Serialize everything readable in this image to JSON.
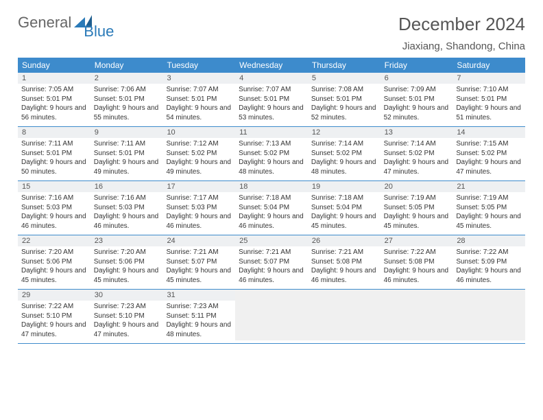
{
  "brand": {
    "part1": "General",
    "part2": "Blue"
  },
  "title": "December 2024",
  "location": "Jiaxiang, Shandong, China",
  "colors": {
    "header_bg": "#3d8bcc",
    "header_fg": "#ffffff",
    "datenum_bg": "#eef0f2",
    "brand_accent": "#2a7ab8",
    "text": "#333333",
    "rule": "#3d8bcc"
  },
  "day_headers": [
    "Sunday",
    "Monday",
    "Tuesday",
    "Wednesday",
    "Thursday",
    "Friday",
    "Saturday"
  ],
  "weeks": [
    [
      {
        "n": "1",
        "sr": "Sunrise: 7:05 AM",
        "ss": "Sunset: 5:01 PM",
        "dl": "Daylight: 9 hours and 56 minutes."
      },
      {
        "n": "2",
        "sr": "Sunrise: 7:06 AM",
        "ss": "Sunset: 5:01 PM",
        "dl": "Daylight: 9 hours and 55 minutes."
      },
      {
        "n": "3",
        "sr": "Sunrise: 7:07 AM",
        "ss": "Sunset: 5:01 PM",
        "dl": "Daylight: 9 hours and 54 minutes."
      },
      {
        "n": "4",
        "sr": "Sunrise: 7:07 AM",
        "ss": "Sunset: 5:01 PM",
        "dl": "Daylight: 9 hours and 53 minutes."
      },
      {
        "n": "5",
        "sr": "Sunrise: 7:08 AM",
        "ss": "Sunset: 5:01 PM",
        "dl": "Daylight: 9 hours and 52 minutes."
      },
      {
        "n": "6",
        "sr": "Sunrise: 7:09 AM",
        "ss": "Sunset: 5:01 PM",
        "dl": "Daylight: 9 hours and 52 minutes."
      },
      {
        "n": "7",
        "sr": "Sunrise: 7:10 AM",
        "ss": "Sunset: 5:01 PM",
        "dl": "Daylight: 9 hours and 51 minutes."
      }
    ],
    [
      {
        "n": "8",
        "sr": "Sunrise: 7:11 AM",
        "ss": "Sunset: 5:01 PM",
        "dl": "Daylight: 9 hours and 50 minutes."
      },
      {
        "n": "9",
        "sr": "Sunrise: 7:11 AM",
        "ss": "Sunset: 5:01 PM",
        "dl": "Daylight: 9 hours and 49 minutes."
      },
      {
        "n": "10",
        "sr": "Sunrise: 7:12 AM",
        "ss": "Sunset: 5:02 PM",
        "dl": "Daylight: 9 hours and 49 minutes."
      },
      {
        "n": "11",
        "sr": "Sunrise: 7:13 AM",
        "ss": "Sunset: 5:02 PM",
        "dl": "Daylight: 9 hours and 48 minutes."
      },
      {
        "n": "12",
        "sr": "Sunrise: 7:14 AM",
        "ss": "Sunset: 5:02 PM",
        "dl": "Daylight: 9 hours and 48 minutes."
      },
      {
        "n": "13",
        "sr": "Sunrise: 7:14 AM",
        "ss": "Sunset: 5:02 PM",
        "dl": "Daylight: 9 hours and 47 minutes."
      },
      {
        "n": "14",
        "sr": "Sunrise: 7:15 AM",
        "ss": "Sunset: 5:02 PM",
        "dl": "Daylight: 9 hours and 47 minutes."
      }
    ],
    [
      {
        "n": "15",
        "sr": "Sunrise: 7:16 AM",
        "ss": "Sunset: 5:03 PM",
        "dl": "Daylight: 9 hours and 46 minutes."
      },
      {
        "n": "16",
        "sr": "Sunrise: 7:16 AM",
        "ss": "Sunset: 5:03 PM",
        "dl": "Daylight: 9 hours and 46 minutes."
      },
      {
        "n": "17",
        "sr": "Sunrise: 7:17 AM",
        "ss": "Sunset: 5:03 PM",
        "dl": "Daylight: 9 hours and 46 minutes."
      },
      {
        "n": "18",
        "sr": "Sunrise: 7:18 AM",
        "ss": "Sunset: 5:04 PM",
        "dl": "Daylight: 9 hours and 46 minutes."
      },
      {
        "n": "19",
        "sr": "Sunrise: 7:18 AM",
        "ss": "Sunset: 5:04 PM",
        "dl": "Daylight: 9 hours and 45 minutes."
      },
      {
        "n": "20",
        "sr": "Sunrise: 7:19 AM",
        "ss": "Sunset: 5:05 PM",
        "dl": "Daylight: 9 hours and 45 minutes."
      },
      {
        "n": "21",
        "sr": "Sunrise: 7:19 AM",
        "ss": "Sunset: 5:05 PM",
        "dl": "Daylight: 9 hours and 45 minutes."
      }
    ],
    [
      {
        "n": "22",
        "sr": "Sunrise: 7:20 AM",
        "ss": "Sunset: 5:06 PM",
        "dl": "Daylight: 9 hours and 45 minutes."
      },
      {
        "n": "23",
        "sr": "Sunrise: 7:20 AM",
        "ss": "Sunset: 5:06 PM",
        "dl": "Daylight: 9 hours and 45 minutes."
      },
      {
        "n": "24",
        "sr": "Sunrise: 7:21 AM",
        "ss": "Sunset: 5:07 PM",
        "dl": "Daylight: 9 hours and 45 minutes."
      },
      {
        "n": "25",
        "sr": "Sunrise: 7:21 AM",
        "ss": "Sunset: 5:07 PM",
        "dl": "Daylight: 9 hours and 46 minutes."
      },
      {
        "n": "26",
        "sr": "Sunrise: 7:21 AM",
        "ss": "Sunset: 5:08 PM",
        "dl": "Daylight: 9 hours and 46 minutes."
      },
      {
        "n": "27",
        "sr": "Sunrise: 7:22 AM",
        "ss": "Sunset: 5:08 PM",
        "dl": "Daylight: 9 hours and 46 minutes."
      },
      {
        "n": "28",
        "sr": "Sunrise: 7:22 AM",
        "ss": "Sunset: 5:09 PM",
        "dl": "Daylight: 9 hours and 46 minutes."
      }
    ],
    [
      {
        "n": "29",
        "sr": "Sunrise: 7:22 AM",
        "ss": "Sunset: 5:10 PM",
        "dl": "Daylight: 9 hours and 47 minutes."
      },
      {
        "n": "30",
        "sr": "Sunrise: 7:23 AM",
        "ss": "Sunset: 5:10 PM",
        "dl": "Daylight: 9 hours and 47 minutes."
      },
      {
        "n": "31",
        "sr": "Sunrise: 7:23 AM",
        "ss": "Sunset: 5:11 PM",
        "dl": "Daylight: 9 hours and 48 minutes."
      },
      null,
      null,
      null,
      null
    ]
  ]
}
